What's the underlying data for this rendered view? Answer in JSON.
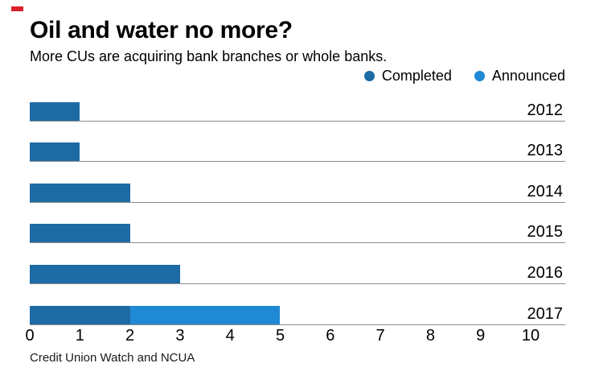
{
  "brand": {
    "color": "#d9222a"
  },
  "header": {
    "title": "Oil and water no more?",
    "subtitle": "More CUs are acquiring bank branches or whole banks."
  },
  "source": "Credit Union Watch and NCUA",
  "chart_data": {
    "type": "bar",
    "orientation": "horizontal",
    "stacked": true,
    "title": "Oil and water no more?",
    "subtitle": "More CUs are acquiring bank branches or whole banks.",
    "categories": [
      "2012",
      "2013",
      "2014",
      "2015",
      "2016",
      "2017"
    ],
    "series": [
      {
        "name": "Completed",
        "color": "#1d6ba5",
        "values": [
          1,
          1,
          2,
          2,
          3,
          2
        ]
      },
      {
        "name": "Announced",
        "color": "#2089d5",
        "values": [
          0,
          0,
          0,
          0,
          0,
          3
        ]
      }
    ],
    "xlim": [
      0,
      10
    ],
    "x_ticks": [
      "0",
      "1",
      "2",
      "3",
      "4",
      "5",
      "6",
      "7",
      "8",
      "9",
      "10"
    ],
    "grid": false,
    "legend_position": "top-right",
    "source": "Credit Union Watch and NCUA"
  }
}
